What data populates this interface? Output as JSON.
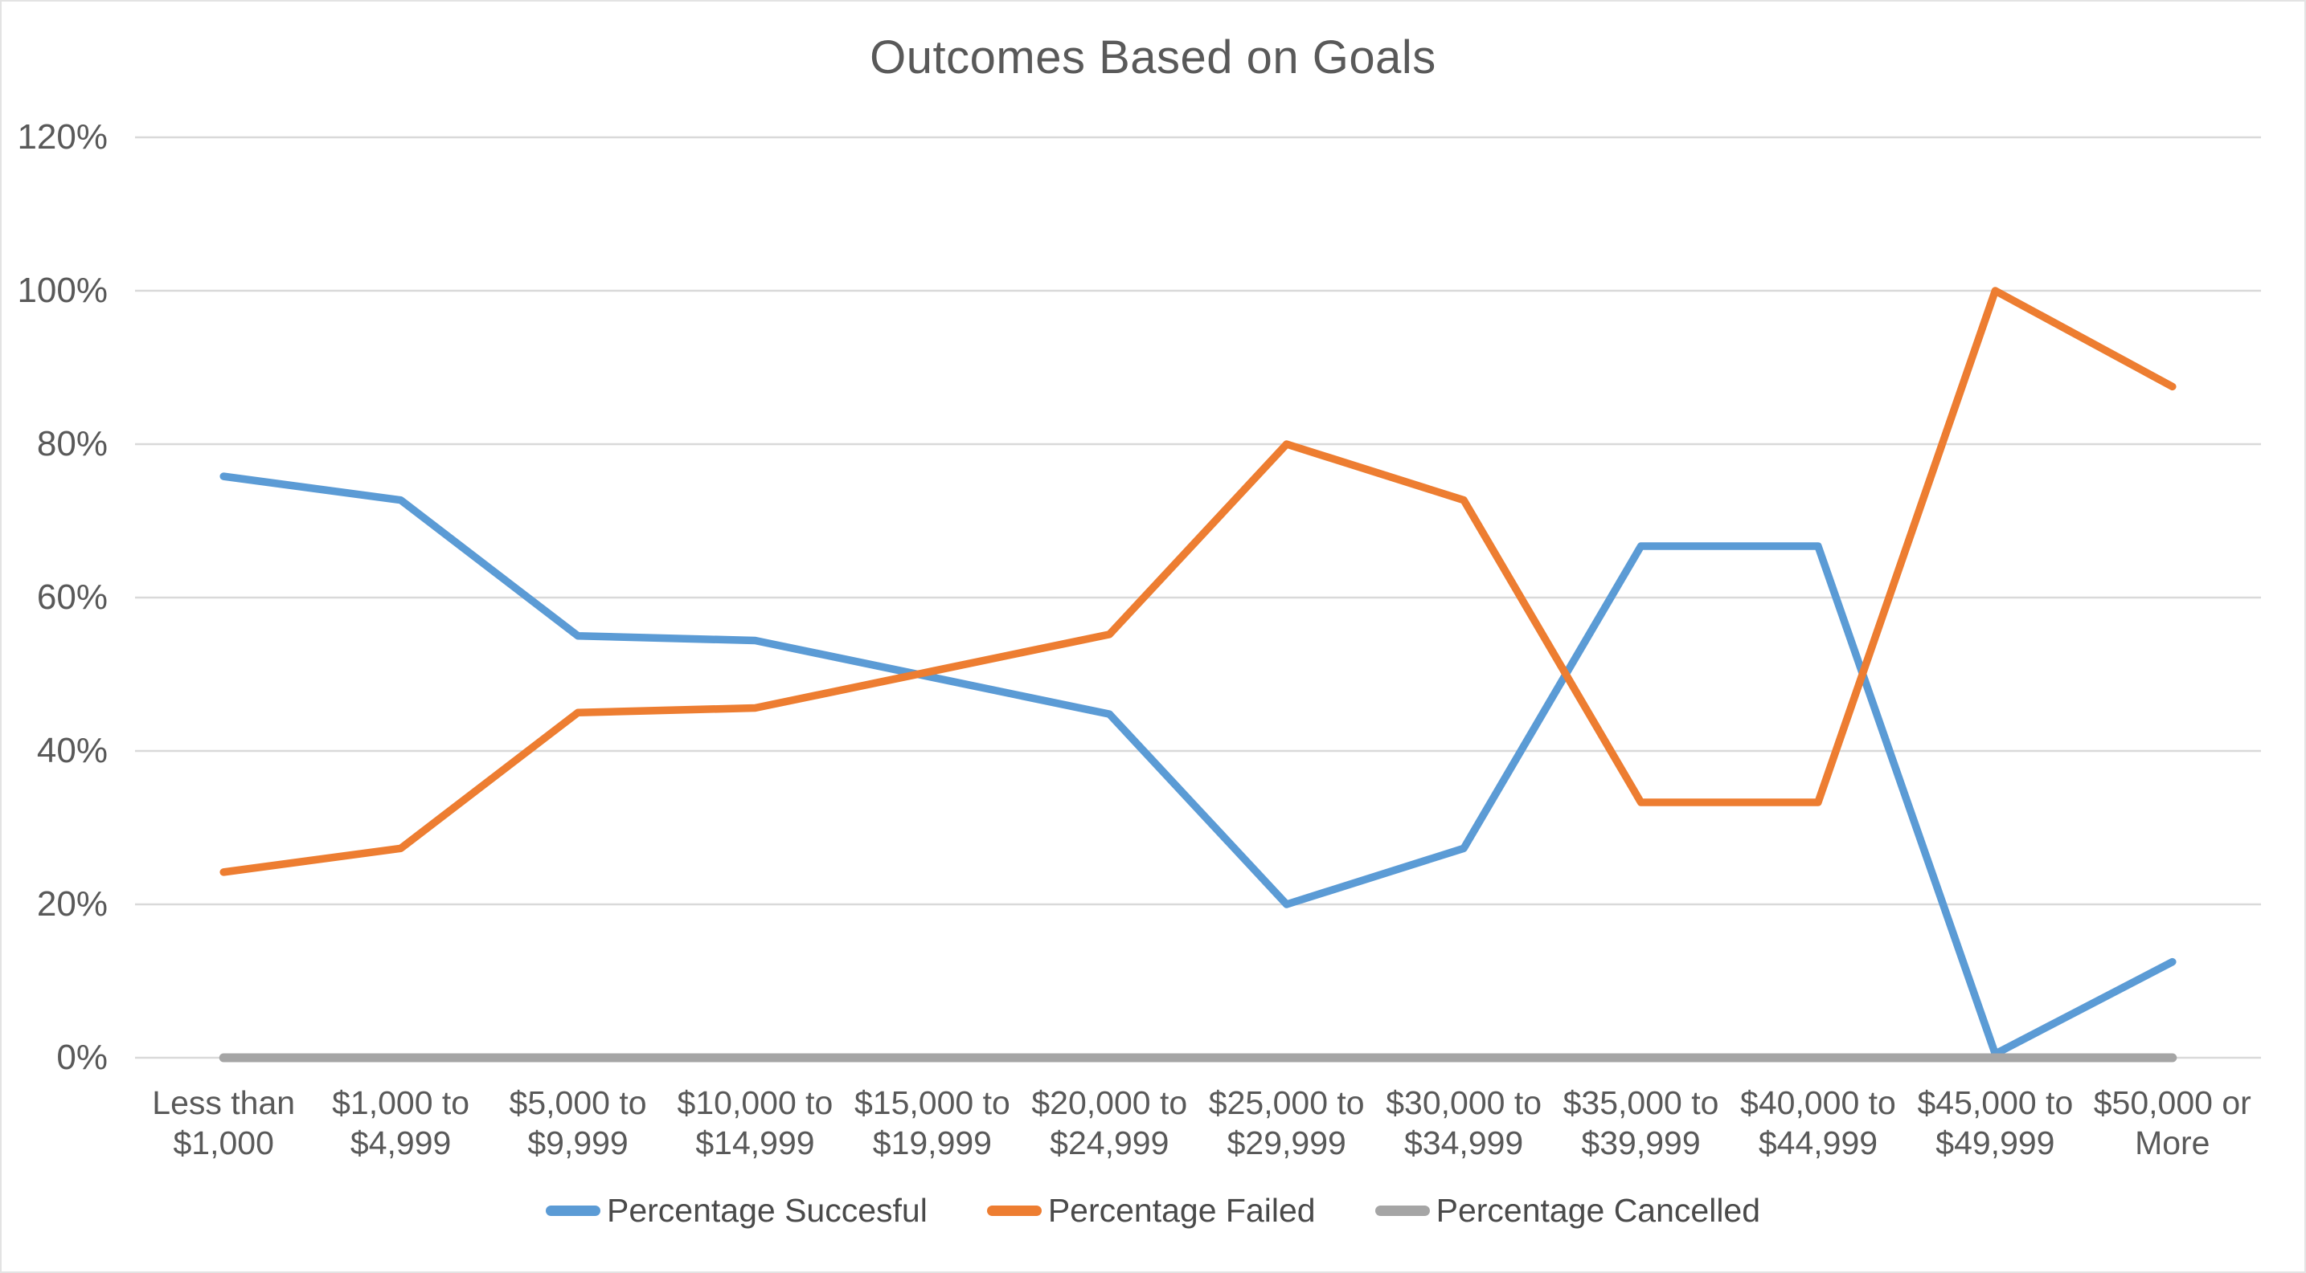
{
  "chart_data": {
    "type": "line",
    "title": "Outcomes Based on Goals",
    "categories": [
      "Less than\n$1,000",
      "$1,000 to\n$4,999",
      "$5,000 to\n$9,999",
      "$10,000 to\n$14,999",
      "$15,000 to\n$19,999",
      "$20,000 to\n$24,999",
      "$25,000 to\n$29,999",
      "$30,000 to\n$34,999",
      "$35,000 to\n$39,999",
      "$40,000 to\n$44,999",
      "$45,000 to\n$49,999",
      "$50,000 or\nMore"
    ],
    "series": [
      {
        "name": "Percentage Succesful",
        "color": "#5B9BD5",
        "values": [
          75.8,
          72.7,
          55.0,
          54.4,
          49.6,
          44.8,
          20.0,
          27.3,
          66.7,
          66.7,
          0.5,
          12.5
        ]
      },
      {
        "name": "Percentage Failed",
        "color": "#ED7D31",
        "values": [
          24.2,
          27.3,
          45.0,
          45.6,
          50.4,
          55.2,
          80.0,
          72.7,
          33.3,
          33.3,
          100.0,
          87.5
        ]
      },
      {
        "name": "Percentage Cancelled",
        "color": "#A5A5A5",
        "values": [
          0,
          0,
          0,
          0,
          0,
          0,
          0,
          0,
          0,
          0,
          0,
          0
        ]
      }
    ],
    "ytick_labels": [
      "0%",
      "20%",
      "40%",
      "60%",
      "80%",
      "100%",
      "120%"
    ],
    "ylim": [
      0,
      120
    ],
    "ytick_step": 20,
    "xlabel": "",
    "ylabel": "",
    "grid": "horizontal",
    "legend_position": "bottom"
  },
  "styles": {
    "background": "#FFFFFF",
    "text_color": "#595959",
    "grid_color": "#D9D9D9",
    "frame_border_color": "#E3E3E3"
  }
}
